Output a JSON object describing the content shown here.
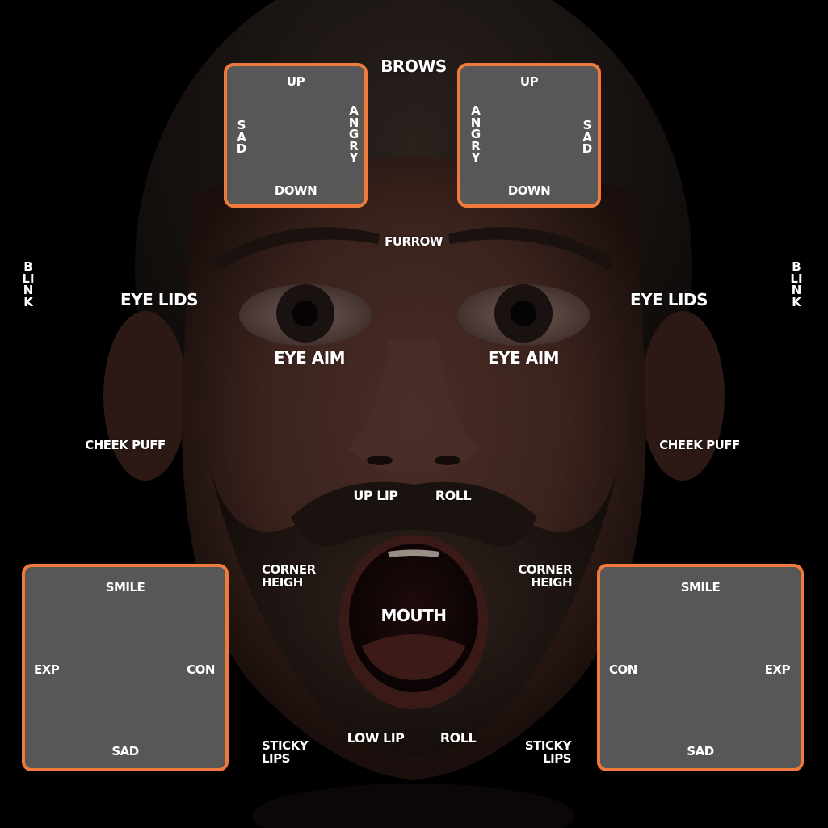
{
  "colors": {
    "background": "#000000",
    "panel_fill": "#5a5a5a",
    "panel_border": "#f07a3c",
    "label_text": "#ffffff"
  },
  "face_image": {
    "icon": "face-render-image"
  },
  "brows": {
    "title": "BROWS",
    "furrow": "FURROW",
    "left_panel": {
      "up": "UP",
      "down": "DOWN",
      "sad": "SAD",
      "angry": "ANGRY"
    },
    "right_panel": {
      "up": "UP",
      "down": "DOWN",
      "sad": "SAD",
      "angry": "ANGRY"
    }
  },
  "blink": {
    "left": "BLINK",
    "right": "BLINK"
  },
  "eye_lids": {
    "left": "EYE LIDS",
    "right": "EYE LIDS"
  },
  "eye_aim": {
    "left": "EYE AIM",
    "right": "EYE AIM"
  },
  "cheek_puff": {
    "left": "CHEEK PUFF",
    "right": "CHEEK PUFF"
  },
  "lips": {
    "up_lip": "UP LIP",
    "up_roll": "ROLL",
    "low_lip": "LOW LIP",
    "low_roll": "ROLL"
  },
  "corner_height": {
    "left_line1": "CORNER",
    "left_line2": "HEIGH",
    "right_line1": "CORNER",
    "right_line2": "HEIGH"
  },
  "sticky_lips": {
    "left_line1": "STICKY",
    "left_line2": "LIPS",
    "right_line1": "STICKY",
    "right_line2": "LIPS"
  },
  "mouth": {
    "title": "MOUTH",
    "left_panel": {
      "smile": "SMILE",
      "sad": "SAD",
      "exp": "EXP",
      "con": "CON"
    },
    "right_panel": {
      "smile": "SMILE",
      "sad": "SAD",
      "exp": "EXP",
      "con": "CON"
    }
  }
}
